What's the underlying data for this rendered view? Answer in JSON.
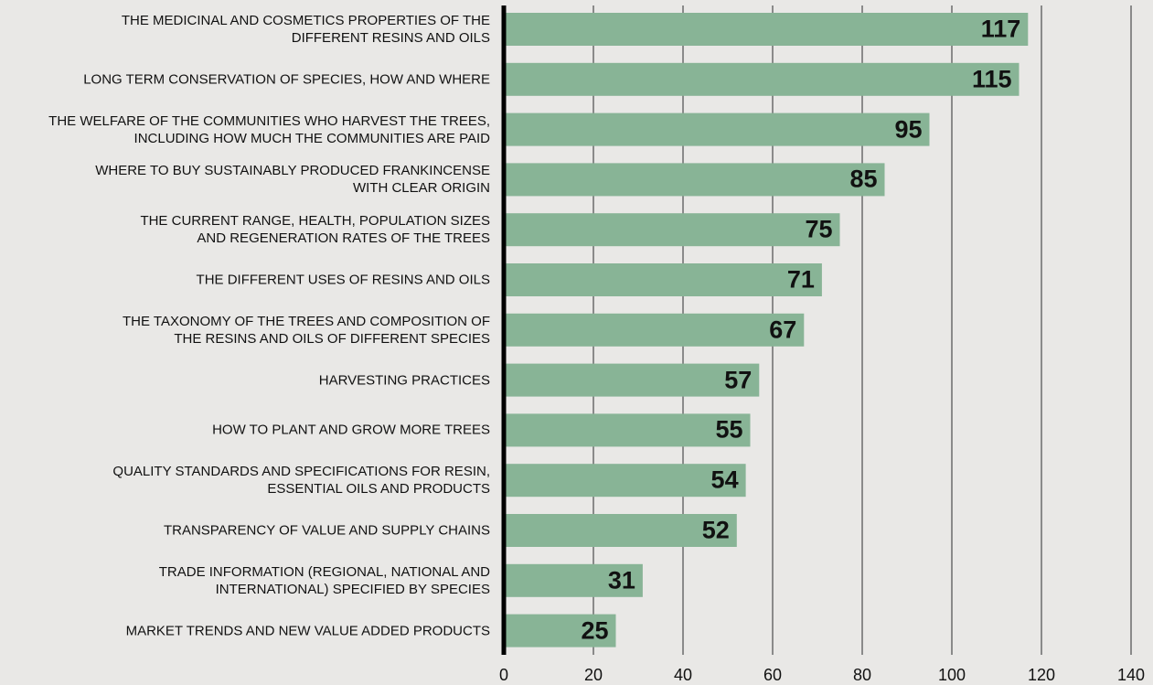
{
  "chart_data": {
    "type": "bar",
    "orientation": "horizontal",
    "categories": [
      "THE MEDICINAL AND COSMETICS PROPERTIES OF THE\nDIFFERENT RESINS AND OILS",
      "LONG TERM CONSERVATION OF SPECIES, HOW AND WHERE",
      "THE WELFARE OF THE COMMUNITIES WHO HARVEST THE TREES,\nINCLUDING HOW MUCH THE COMMUNITIES ARE PAID",
      "WHERE TO BUY SUSTAINABLY PRODUCED FRANKINCENSE\nWITH CLEAR ORIGIN",
      "THE CURRENT RANGE, HEALTH, POPULATION SIZES\nAND REGENERATION RATES OF THE TREES",
      "THE DIFFERENT USES OF RESINS AND OILS",
      "THE TAXONOMY OF THE TREES AND COMPOSITION OF\nTHE RESINS AND OILS OF DIFFERENT SPECIES",
      "HARVESTING PRACTICES",
      "HOW TO PLANT AND GROW MORE TREES",
      "QUALITY STANDARDS AND SPECIFICATIONS FOR RESIN,\nESSENTIAL OILS AND PRODUCTS",
      "TRANSPARENCY OF VALUE AND SUPPLY CHAINS",
      "TRADE INFORMATION (REGIONAL, NATIONAL AND\nINTERNATIONAL) SPECIFIED BY SPECIES",
      "MARKET TRENDS AND NEW VALUE ADDED PRODUCTS"
    ],
    "values": [
      117,
      115,
      95,
      85,
      75,
      71,
      67,
      57,
      55,
      54,
      52,
      31,
      25
    ],
    "xlim": [
      0,
      140
    ],
    "xticks": [
      0,
      20,
      40,
      60,
      80,
      100,
      120,
      140
    ],
    "grid": "vertical",
    "data_labels": true,
    "legend": "none",
    "colors": {
      "bar": "#88b496",
      "grid": "#8a8a8a",
      "axis": "#000000",
      "background": "#e9e8e6"
    }
  }
}
